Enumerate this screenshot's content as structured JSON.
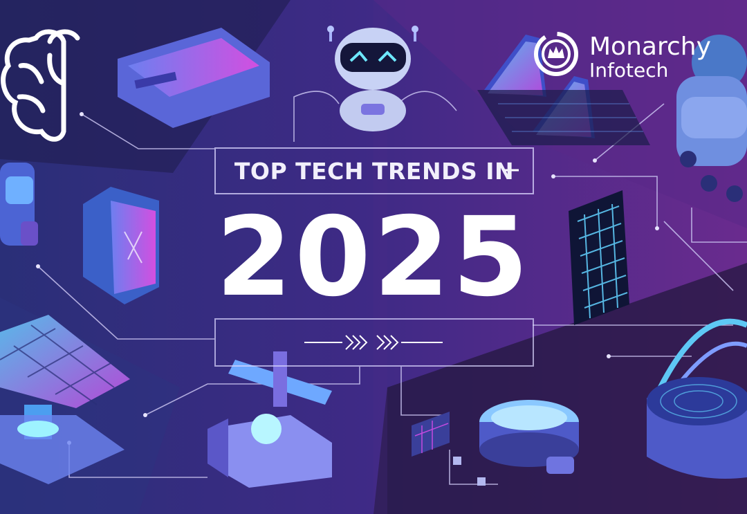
{
  "banner": {
    "headline": "TOP TECH TRENDS IN",
    "year": "2025"
  },
  "brand": {
    "name": "Monarchy",
    "sub": "Infotech"
  },
  "icons": [
    "brain-icon",
    "vr-headset-icon",
    "robot-head-icon",
    "solar-panel-icon",
    "service-robot-icon",
    "smart-device-icon",
    "solar-array-icon",
    "robotic-arm-icon",
    "drone-icon",
    "circuit-chip-icon",
    "smart-speaker-icon",
    "glass-panel-icon",
    "dome-cage-icon",
    "chevron-arrows-icon",
    "monarchy-crown-logo-icon"
  ],
  "colors": {
    "background_dark": "#1e1a4a",
    "background_purple": "#5a2a8a",
    "accent_cyan": "#5ec8f5",
    "accent_magenta": "#c44adf",
    "text": "#ffffff"
  }
}
